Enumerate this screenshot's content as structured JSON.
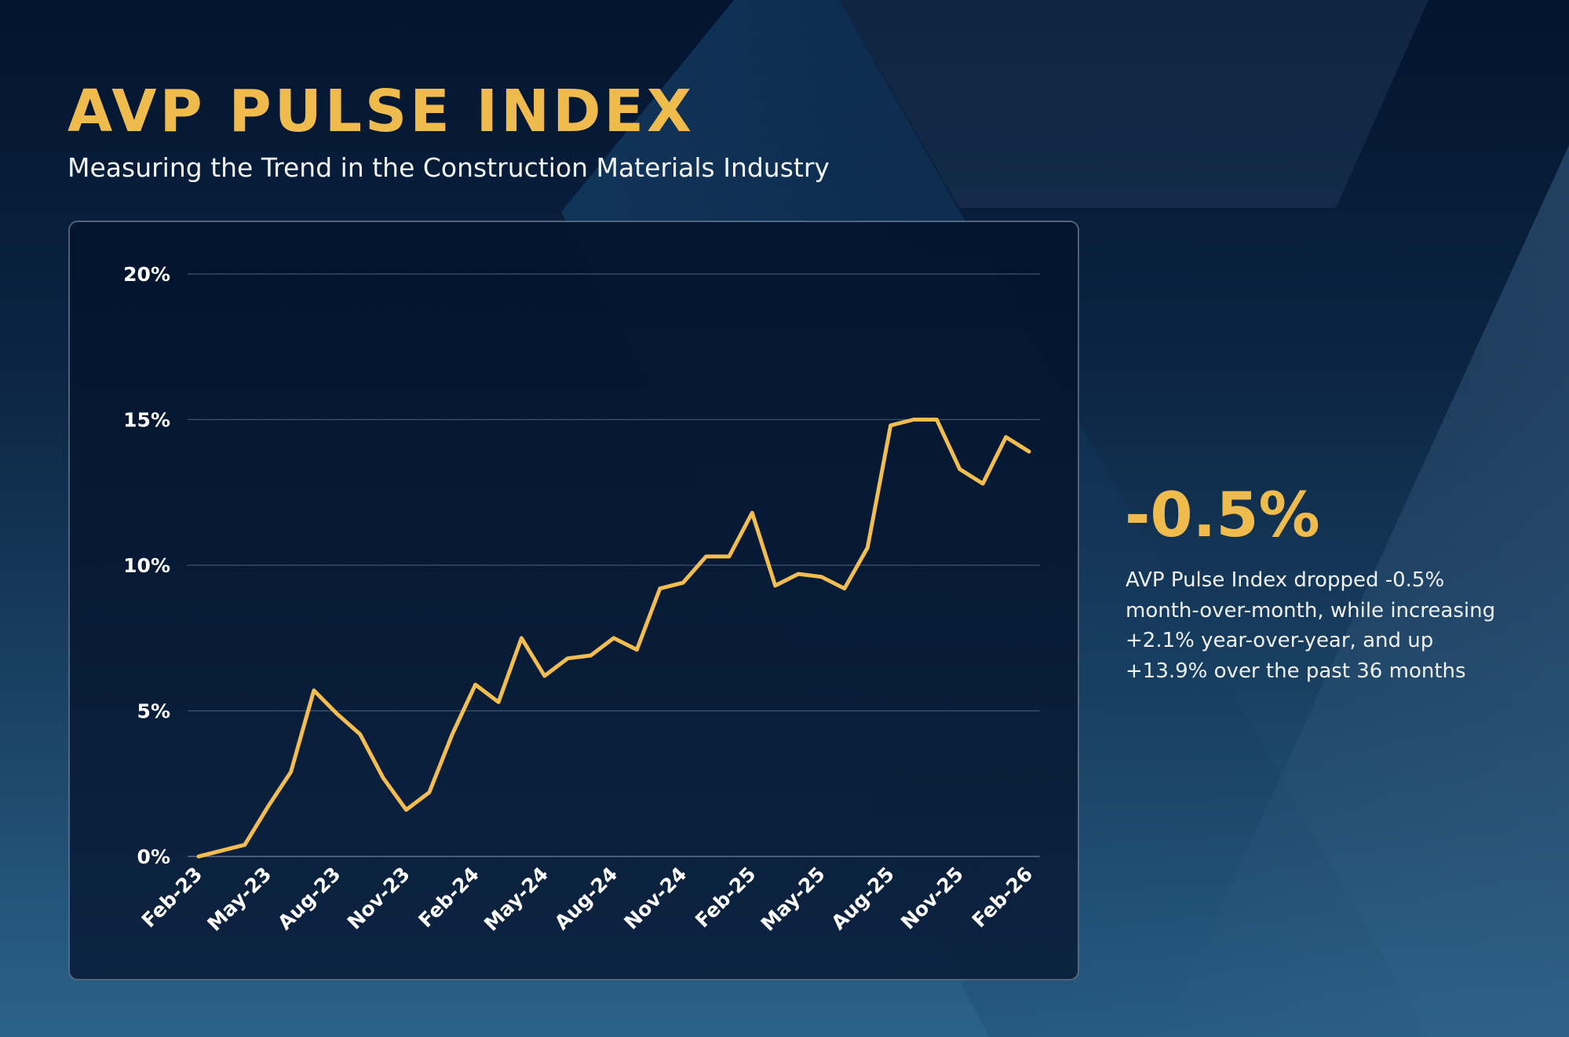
{
  "header": {
    "title": "AVP PULSE INDEX",
    "subtitle": "Measuring the Trend in the Construction Materials Industry"
  },
  "summary": {
    "headline_value": "-0.5%",
    "lines": [
      "AVP Pulse Index dropped -0.5%",
      "month-over-month, while increasing",
      "+2.1% year-over-year, and up",
      "+13.9% over the past 36 months"
    ]
  },
  "colors": {
    "accent": "#f0bb4d",
    "line": "#f3bd4f",
    "gridline": "#41546d",
    "text": "#ffffff"
  },
  "chart_data": {
    "type": "line",
    "title": "",
    "xlabel": "",
    "ylabel": "",
    "ylim": [
      0,
      20
    ],
    "y_ticks": [
      "0%",
      "5%",
      "10%",
      "15%",
      "20%"
    ],
    "y_tick_values": [
      0,
      5,
      10,
      15,
      20
    ],
    "x_tick_labels": [
      "Feb-23",
      "May-23",
      "Aug-23",
      "Nov-23",
      "Feb-24",
      "May-24",
      "Aug-24",
      "Nov-24",
      "Feb-25",
      "May-25",
      "Aug-25",
      "Nov-25",
      "Feb-26"
    ],
    "x": [
      "Feb-23",
      "Mar-23",
      "Apr-23",
      "May-23",
      "Jun-23",
      "Jul-23",
      "Aug-23",
      "Sep-23",
      "Oct-23",
      "Nov-23",
      "Dec-23",
      "Jan-24",
      "Feb-24",
      "Mar-24",
      "Apr-24",
      "May-24",
      "Jun-24",
      "Jul-24",
      "Aug-24",
      "Sep-24",
      "Oct-24",
      "Nov-24",
      "Dec-24",
      "Jan-25",
      "Feb-25",
      "Mar-25",
      "Apr-25",
      "May-25",
      "Jun-25",
      "Jul-25",
      "Aug-25",
      "Sep-25",
      "Oct-25",
      "Nov-25",
      "Dec-25",
      "Jan-26",
      "Feb-26"
    ],
    "series": [
      {
        "values": [
          0.0,
          0.2,
          0.4,
          1.7,
          2.9,
          5.7,
          4.9,
          4.2,
          2.7,
          1.6,
          2.2,
          4.2,
          5.9,
          5.3,
          7.5,
          6.2,
          6.8,
          6.9,
          7.5,
          7.1,
          9.2,
          9.4,
          10.3,
          10.3,
          11.8,
          9.3,
          9.7,
          9.6,
          9.2,
          10.6,
          14.8,
          15.0,
          15.0,
          13.3,
          12.8,
          14.4,
          13.9
        ]
      }
    ],
    "grid": true,
    "legend": "none"
  }
}
